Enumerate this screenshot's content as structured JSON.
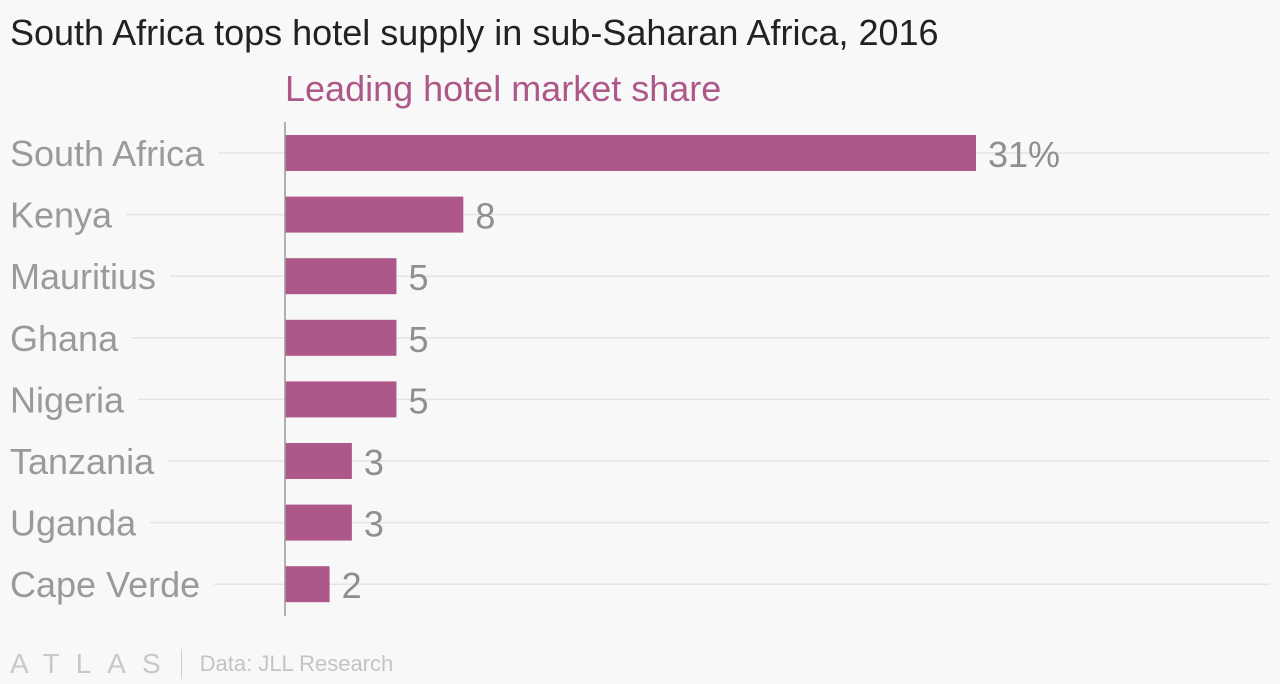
{
  "chart_data": {
    "type": "bar",
    "orientation": "horizontal",
    "title": "South Africa tops hotel supply in sub-Saharan Africa, 2016",
    "series": [
      {
        "name": "Leading hotel market share",
        "values": [
          31,
          8,
          5,
          5,
          5,
          3,
          3,
          2
        ]
      }
    ],
    "categories": [
      "South Africa",
      "Kenya",
      "Mauritius",
      "Ghana",
      "Nigeria",
      "Tanzania",
      "Uganda",
      "Cape Verde"
    ],
    "value_labels": [
      "31%",
      "8",
      "5",
      "5",
      "5",
      "3",
      "3",
      "2"
    ],
    "xlim": [
      0,
      40
    ],
    "grid": true,
    "colors": {
      "bar": "#ad5889",
      "series_label": "#ad5889"
    }
  },
  "footer": {
    "logo": "ATLAS",
    "source": "Data: JLL Research"
  }
}
